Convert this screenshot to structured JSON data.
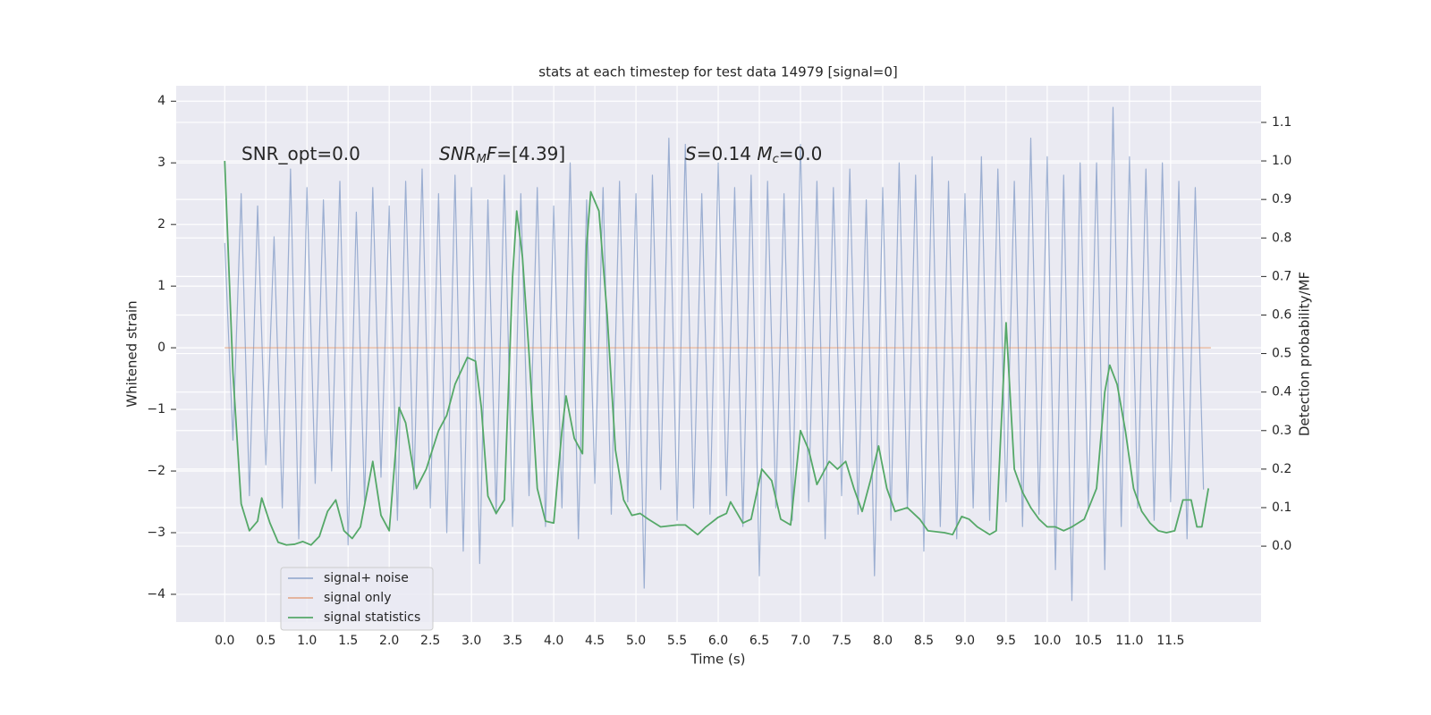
{
  "chart_data": {
    "type": "line",
    "title": "stats at each timestep for test data 14979 [signal=0]",
    "xlabel": "Time (s)",
    "ylabel": "Whitened strain",
    "y2label": "Detection probability/MF",
    "xlim": [
      -0.59,
      12.6
    ],
    "ylim": [
      -4.45,
      4.25
    ],
    "y2lim": [
      -0.197,
      1.195
    ],
    "xticks": [
      {
        "value": 0,
        "label": "0.0"
      },
      0.5,
      {
        "value": 1,
        "label": "1.0"
      },
      1.5,
      {
        "value": 2,
        "label": "2.0"
      },
      2.5,
      {
        "value": 3,
        "label": "3.0"
      },
      3.5,
      {
        "value": 4,
        "label": "4.0"
      },
      4.5,
      {
        "value": 5,
        "label": "5.0"
      },
      5.5,
      {
        "value": 6,
        "label": "6.0"
      },
      6.5,
      {
        "value": 7,
        "label": "7.0"
      },
      7.5,
      {
        "value": 8,
        "label": "8.0"
      },
      8.5,
      {
        "value": 9,
        "label": "9.0"
      },
      9.5,
      {
        "value": 10,
        "label": "10.0"
      },
      10.5,
      {
        "value": 11,
        "label": "11.0"
      },
      11.5
    ],
    "yticks": [
      {
        "value": -4,
        "label": "−4"
      },
      {
        "value": -3,
        "label": "−3"
      },
      {
        "value": -2,
        "label": "−2"
      },
      {
        "value": -1,
        "label": "−1"
      },
      0,
      1,
      2,
      3,
      4
    ],
    "y2ticks": [
      {
        "value": 0,
        "label": "0.0"
      },
      0.1,
      0.2,
      0.3,
      0.4,
      0.5,
      0.6,
      0.7,
      0.8,
      0.9,
      {
        "value": 1,
        "label": "1.0"
      },
      1.1
    ],
    "grid": true,
    "legend": "lower left",
    "annotations": [
      [
        {
          "text": "SNR_opt=0.0",
          "style": "normal"
        }
      ],
      [
        {
          "text": "SNR",
          "style": "italic"
        },
        {
          "text": "M",
          "style": "sub"
        },
        {
          "text": "F",
          "style": "italic"
        },
        {
          "text": "=[4.39]",
          "style": "normal"
        }
      ],
      [
        {
          "text": "S",
          "style": "italic"
        },
        {
          "text": "=0.14   ",
          "style": "normal"
        },
        {
          "text": "M",
          "style": "italic"
        },
        {
          "text": "c",
          "style": "sub"
        },
        {
          "text": "=0.0",
          "style": "normal"
        }
      ]
    ],
    "series": [
      {
        "name": "signal+ noise",
        "color": "#4c72b0",
        "alpha": 0.5,
        "x": [
          0,
          0.1,
          0.2,
          0.3,
          0.4,
          0.5,
          0.6,
          0.7,
          0.8,
          0.9,
          1,
          1.1,
          1.2,
          1.3,
          1.4,
          1.5,
          1.6,
          1.7,
          1.8,
          1.9,
          2,
          2.1,
          2.2,
          2.3,
          2.4,
          2.5,
          2.6,
          2.7,
          2.8,
          2.9,
          3,
          3.1,
          3.2,
          3.3,
          3.4,
          3.5,
          3.6,
          3.7,
          3.8,
          3.9,
          4,
          4.1,
          4.2,
          4.3,
          4.4,
          4.5,
          4.6,
          4.7,
          4.8,
          4.9,
          5,
          5.1,
          5.2,
          5.3,
          5.4,
          5.5,
          5.6,
          5.7,
          5.8,
          5.9,
          6,
          6.1,
          6.2,
          6.3,
          6.4,
          6.5,
          6.6,
          6.7,
          6.8,
          6.9,
          7,
          7.1,
          7.2,
          7.3,
          7.4,
          7.5,
          7.6,
          7.7,
          7.8,
          7.9,
          8,
          8.1,
          8.2,
          8.3,
          8.4,
          8.5,
          8.6,
          8.7,
          8.8,
          8.9,
          9,
          9.1,
          9.2,
          9.3,
          9.4,
          9.5,
          9.6,
          9.7,
          9.8,
          9.9,
          10,
          10.1,
          10.2,
          10.3,
          10.4,
          10.5,
          10.6,
          10.7,
          10.8,
          10.9,
          11,
          11.1,
          11.2,
          11.3,
          11.4,
          11.5,
          11.6,
          11.7,
          11.8,
          11.9
        ],
        "values": [
          1.7,
          -1.5,
          2.5,
          -2.4,
          2.3,
          -1.9,
          1.8,
          -2.6,
          2.9,
          -3.1,
          2.6,
          -2.2,
          2.4,
          -2.0,
          2.7,
          -3.2,
          2.2,
          -2.5,
          2.6,
          -2.1,
          2.3,
          -2.8,
          2.7,
          -2.3,
          2.9,
          -2.6,
          2.5,
          -3.0,
          2.8,
          -3.3,
          2.6,
          -3.5,
          2.4,
          -2.7,
          2.8,
          -2.9,
          2.5,
          -2.4,
          2.6,
          -2.9,
          2.3,
          -2.6,
          3.0,
          -3.1,
          2.4,
          -2.2,
          2.6,
          -2.7,
          2.7,
          -2.5,
          2.5,
          -3.9,
          2.8,
          -2.3,
          3.4,
          -2.8,
          3.3,
          -2.6,
          2.5,
          -2.7,
          3.0,
          -2.4,
          2.6,
          -2.9,
          2.8,
          -3.7,
          2.7,
          -2.6,
          2.5,
          -2.8,
          3.3,
          -2.5,
          2.7,
          -3.1,
          2.6,
          -2.4,
          2.9,
          -2.7,
          2.4,
          -3.7,
          2.6,
          -2.8,
          3.0,
          -2.6,
          2.8,
          -3.3,
          3.1,
          -2.9,
          2.7,
          -3.1,
          2.5,
          -2.6,
          3.1,
          -2.8,
          2.9,
          -2.5,
          2.7,
          -2.9,
          3.4,
          -2.7,
          3.1,
          -3.6,
          2.8,
          -4.1,
          3.0,
          -2.6,
          3.0,
          -3.6,
          3.9,
          -2.9,
          3.1,
          -2.6,
          2.9,
          -2.8,
          3.0,
          -2.5,
          2.7,
          -3.1,
          2.6,
          -2.3
        ]
      },
      {
        "name": "signal only",
        "color": "#dd8452",
        "alpha": 0.6,
        "x": [
          0,
          11.99
        ],
        "values": [
          0,
          0
        ]
      },
      {
        "name": "signal statistics",
        "color": "#55a868",
        "alpha": 1,
        "axis": "y2",
        "x": [
          0,
          0.1,
          0.2,
          0.3,
          0.4,
          0.45,
          0.55,
          0.65,
          0.75,
          0.85,
          0.95,
          1.05,
          1.15,
          1.25,
          1.35,
          1.45,
          1.55,
          1.65,
          1.8,
          1.9,
          2.0,
          2.12,
          2.2,
          2.33,
          2.45,
          2.6,
          2.7,
          2.8,
          2.95,
          3.05,
          3.12,
          3.2,
          3.3,
          3.4,
          3.5,
          3.55,
          3.62,
          3.7,
          3.8,
          3.9,
          4.0,
          4.1,
          4.15,
          4.25,
          4.35,
          4.4,
          4.45,
          4.55,
          4.65,
          4.75,
          4.85,
          4.95,
          5.05,
          5.15,
          5.3,
          5.5,
          5.6,
          5.75,
          5.85,
          6.0,
          6.1,
          6.15,
          6.3,
          6.4,
          6.53,
          6.65,
          6.76,
          6.88,
          7.0,
          7.1,
          7.2,
          7.35,
          7.45,
          7.55,
          7.65,
          7.75,
          7.85,
          7.95,
          8.05,
          8.15,
          8.3,
          8.45,
          8.55,
          8.75,
          8.85,
          8.96,
          9.05,
          9.15,
          9.3,
          9.38,
          9.5,
          9.6,
          9.7,
          9.8,
          9.9,
          10.0,
          10.1,
          10.2,
          10.3,
          10.45,
          10.6,
          10.7,
          10.76,
          10.85,
          10.95,
          11.05,
          11.15,
          11.25,
          11.35,
          11.45,
          11.55,
          11.65,
          11.75,
          11.82,
          11.88,
          11.96
        ],
        "values": [
          1.0,
          0.45,
          0.11,
          0.04,
          0.065,
          0.125,
          0.06,
          0.01,
          0.003,
          0.005,
          0.012,
          0.003,
          0.025,
          0.09,
          0.12,
          0.04,
          0.02,
          0.05,
          0.22,
          0.08,
          0.04,
          0.36,
          0.32,
          0.15,
          0.2,
          0.3,
          0.34,
          0.42,
          0.49,
          0.48,
          0.36,
          0.13,
          0.085,
          0.12,
          0.7,
          0.87,
          0.75,
          0.5,
          0.15,
          0.065,
          0.06,
          0.3,
          0.39,
          0.28,
          0.24,
          0.78,
          0.92,
          0.87,
          0.6,
          0.25,
          0.12,
          0.08,
          0.085,
          0.07,
          0.05,
          0.055,
          0.055,
          0.03,
          0.05,
          0.075,
          0.085,
          0.115,
          0.06,
          0.07,
          0.2,
          0.17,
          0.07,
          0.055,
          0.3,
          0.25,
          0.16,
          0.22,
          0.2,
          0.22,
          0.15,
          0.09,
          0.17,
          0.26,
          0.15,
          0.09,
          0.1,
          0.07,
          0.04,
          0.035,
          0.03,
          0.077,
          0.07,
          0.05,
          0.03,
          0.04,
          0.58,
          0.2,
          0.14,
          0.1,
          0.07,
          0.05,
          0.05,
          0.04,
          0.05,
          0.07,
          0.15,
          0.4,
          0.47,
          0.42,
          0.3,
          0.15,
          0.09,
          0.06,
          0.04,
          0.035,
          0.04,
          0.12,
          0.12,
          0.05,
          0.05,
          0.15
        ]
      }
    ]
  }
}
